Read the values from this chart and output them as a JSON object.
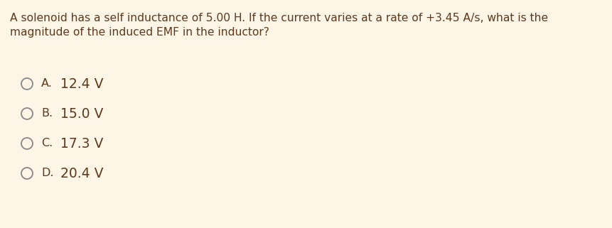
{
  "background_color": "#fdf5e6",
  "text_color": "#5c3a1e",
  "question_line1": "A solenoid has a self inductance of 5.00 H. If the current varies at a rate of +3.45 A/s, what is the",
  "question_line2": "magnitude of the induced EMF in the inductor?",
  "options": [
    {
      "label": "A.",
      "text": "12.4 V"
    },
    {
      "label": "B.",
      "text": "15.0 V"
    },
    {
      "label": "C.",
      "text": "17.3 V"
    },
    {
      "label": "D.",
      "text": "20.4 V"
    }
  ],
  "question_fontsize": 11.2,
  "option_label_fontsize": 11.5,
  "option_text_fontsize": 13.5,
  "circle_color": "#888888",
  "fig_width": 8.62,
  "fig_height": 3.21,
  "dpi": 100
}
